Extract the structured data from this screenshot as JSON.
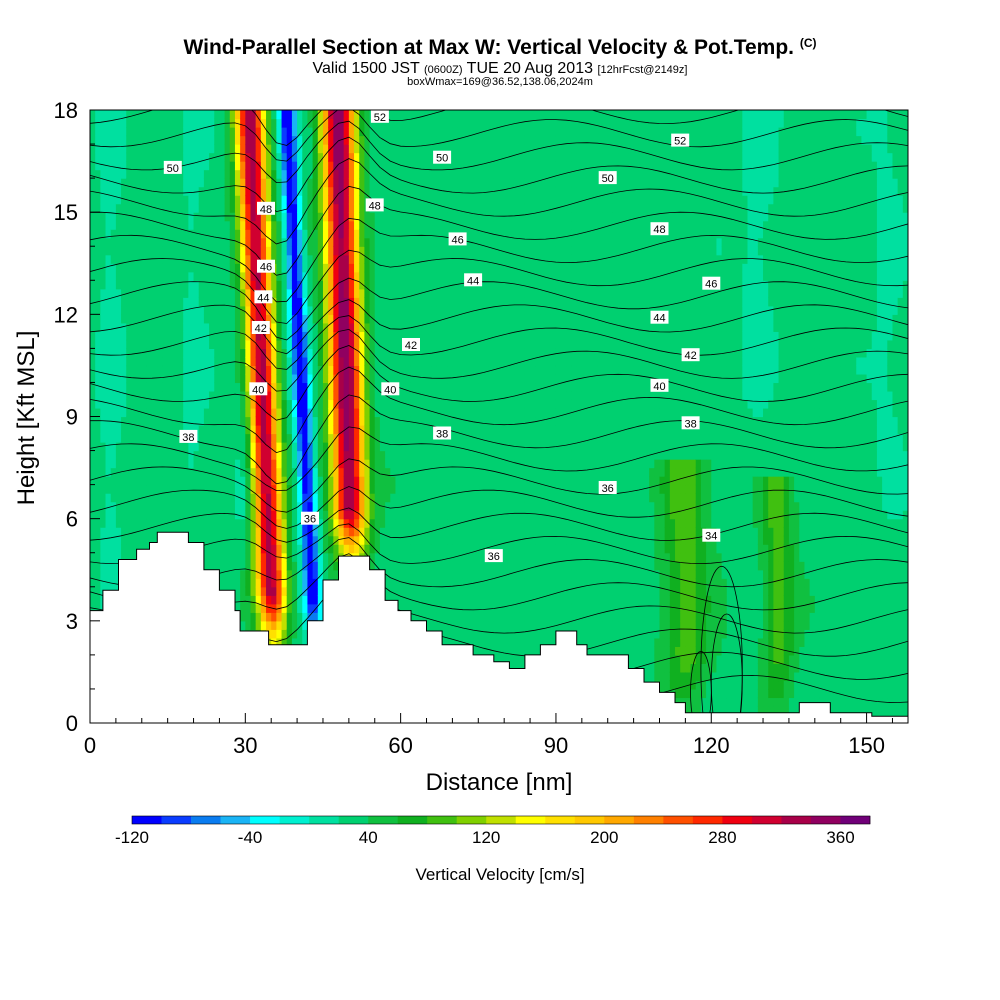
{
  "chart_data": {
    "type": "heatmap",
    "title": {
      "main": "Wind-Parallel Section at Max W: Vertical Velocity & Pot.Temp.",
      "copyright": "(C)",
      "valid_prefix": "Valid 1500 JST",
      "valid_utc": "(0600Z)",
      "valid_suffix": "TUE 20 Aug 2013",
      "forecast": "[12hrFcst@2149z]",
      "subtitle": "boxWmax=169@36.52,138.06,2024m"
    },
    "xlabel": "Distance [nm]",
    "ylabel": "Height [Kft MSL]",
    "xlim": [
      0,
      158
    ],
    "ylim": [
      0,
      18
    ],
    "x_ticks": [
      0,
      30,
      60,
      90,
      120,
      150
    ],
    "y_ticks": [
      0,
      3,
      6,
      9,
      12,
      15,
      18
    ],
    "colorbar": {
      "title": "Vertical Velocity [cm/s]",
      "tick_labels": [
        "-120",
        "-40",
        "40",
        "120",
        "200",
        "280",
        "360"
      ],
      "tick_values": [
        -120,
        -40,
        40,
        120,
        200,
        280,
        360
      ],
      "min": -120,
      "max": 380,
      "step": 20,
      "colors": [
        "#0000ff",
        "#0a3cff",
        "#0a7cf0",
        "#1ab4f5",
        "#00ffff",
        "#00f0d0",
        "#00e0a0",
        "#00d070",
        "#10c040",
        "#10b020",
        "#40c010",
        "#80d000",
        "#c0e000",
        "#ffff00",
        "#ffe000",
        "#ffc800",
        "#ffa800",
        "#ff8000",
        "#ff5000",
        "#ff2800",
        "#f00010",
        "#d00030",
        "#a80048",
        "#900060",
        "#700078"
      ]
    },
    "terrain": [
      [
        0,
        3.3
      ],
      [
        2.5,
        3.3
      ],
      [
        2.5,
        3.9
      ],
      [
        5.5,
        3.9
      ],
      [
        5.5,
        4.8
      ],
      [
        9,
        4.8
      ],
      [
        9,
        5.1
      ],
      [
        11.5,
        5.1
      ],
      [
        11.5,
        5.3
      ],
      [
        13,
        5.3
      ],
      [
        13,
        5.6
      ],
      [
        19,
        5.6
      ],
      [
        19,
        5.3
      ],
      [
        22,
        5.3
      ],
      [
        22,
        4.5
      ],
      [
        25,
        4.5
      ],
      [
        25,
        3.9
      ],
      [
        28,
        3.9
      ],
      [
        28,
        3.3
      ],
      [
        29,
        3.3
      ],
      [
        29,
        2.7
      ],
      [
        34.5,
        2.7
      ],
      [
        34.5,
        2.3
      ],
      [
        42,
        2.3
      ],
      [
        42,
        3.0
      ],
      [
        45,
        3.0
      ],
      [
        45,
        4.2
      ],
      [
        48,
        4.2
      ],
      [
        48,
        4.9
      ],
      [
        54,
        4.9
      ],
      [
        54,
        4.5
      ],
      [
        57,
        4.5
      ],
      [
        57,
        3.6
      ],
      [
        59.5,
        3.6
      ],
      [
        59.5,
        3.3
      ],
      [
        62,
        3.3
      ],
      [
        62,
        3.0
      ],
      [
        65,
        3.0
      ],
      [
        65,
        2.7
      ],
      [
        68,
        2.7
      ],
      [
        68,
        2.3
      ],
      [
        74,
        2.3
      ],
      [
        74,
        2.0
      ],
      [
        78,
        2.0
      ],
      [
        78,
        1.8
      ],
      [
        81,
        1.8
      ],
      [
        81,
        1.6
      ],
      [
        84,
        1.6
      ],
      [
        84,
        2.0
      ],
      [
        87,
        2.0
      ],
      [
        87,
        2.3
      ],
      [
        90,
        2.3
      ],
      [
        90,
        2.7
      ],
      [
        94,
        2.7
      ],
      [
        94,
        2.3
      ],
      [
        96,
        2.3
      ],
      [
        96,
        2.0
      ],
      [
        104,
        2.0
      ],
      [
        104,
        1.6
      ],
      [
        107,
        1.6
      ],
      [
        107,
        1.2
      ],
      [
        110,
        1.2
      ],
      [
        110,
        0.9
      ],
      [
        113,
        0.9
      ],
      [
        113,
        0.6
      ],
      [
        115,
        0.6
      ],
      [
        115,
        0.3
      ],
      [
        131,
        0.3
      ],
      [
        131,
        0.3
      ],
      [
        137,
        0.3
      ],
      [
        137,
        0.6
      ],
      [
        143,
        0.6
      ],
      [
        143,
        0.3
      ],
      [
        151,
        0.3
      ],
      [
        151,
        0.2
      ],
      [
        158,
        0.2
      ]
    ],
    "velocity_features": [
      {
        "x": 35.5,
        "z0": 2.3,
        "z1": 18,
        "slant": -3.0,
        "width": 2.8,
        "amp": 300
      },
      {
        "x": 50.5,
        "z0": 4.8,
        "z1": 18,
        "slant": -2.0,
        "width": 3.2,
        "amp": 320
      },
      {
        "x": 43.5,
        "z0": 2.3,
        "z1": 18,
        "slant": -3.5,
        "width": 1.6,
        "amp": -150
      },
      {
        "x": 30.5,
        "z0": 5,
        "z1": 12,
        "slant": 0,
        "width": 2.2,
        "amp": -30
      },
      {
        "x": 115,
        "z0": 0.5,
        "z1": 7,
        "slant": 0,
        "width": 4.5,
        "amp": 60
      },
      {
        "x": 133,
        "z0": 0.5,
        "z1": 6.5,
        "slant": 0,
        "width": 3.0,
        "amp": 60
      },
      {
        "x": 4,
        "z0": 3.5,
        "z1": 18,
        "slant": 0,
        "width": 2.5,
        "amp": -20
      },
      {
        "x": 20,
        "z0": 5.5,
        "z1": 18,
        "slant": 0,
        "width": 2.5,
        "amp": -15
      },
      {
        "x": 128,
        "z0": 9,
        "z1": 18,
        "slant": 2,
        "width": 3.5,
        "amp": -20
      },
      {
        "x": 154,
        "z0": 6,
        "z1": 18,
        "slant": 0,
        "width": 3.0,
        "amp": -15
      }
    ],
    "theta_contour_labels": [
      {
        "text": "50",
        "x": 16,
        "z": 16.3
      },
      {
        "text": "50",
        "x": 68,
        "z": 16.6
      },
      {
        "text": "50",
        "x": 100,
        "z": 16.0
      },
      {
        "text": "52",
        "x": 56,
        "z": 17.8
      },
      {
        "text": "52",
        "x": 114,
        "z": 17.1
      },
      {
        "text": "48",
        "x": 34,
        "z": 15.1
      },
      {
        "text": "48",
        "x": 55,
        "z": 15.2
      },
      {
        "text": "48",
        "x": 110,
        "z": 14.5
      },
      {
        "text": "46",
        "x": 34,
        "z": 13.4
      },
      {
        "text": "46",
        "x": 71,
        "z": 14.2
      },
      {
        "text": "46",
        "x": 120,
        "z": 12.9
      },
      {
        "text": "44",
        "x": 33.5,
        "z": 12.5
      },
      {
        "text": "44",
        "x": 74,
        "z": 13.0
      },
      {
        "text": "44",
        "x": 110,
        "z": 11.9
      },
      {
        "text": "42",
        "x": 33,
        "z": 11.6
      },
      {
        "text": "42",
        "x": 62,
        "z": 11.1
      },
      {
        "text": "42",
        "x": 116,
        "z": 10.8
      },
      {
        "text": "40",
        "x": 32.5,
        "z": 9.8
      },
      {
        "text": "40",
        "x": 58,
        "z": 9.8
      },
      {
        "text": "40",
        "x": 110,
        "z": 9.9
      },
      {
        "text": "38",
        "x": 19,
        "z": 8.4
      },
      {
        "text": "38",
        "x": 68,
        "z": 8.5
      },
      {
        "text": "38",
        "x": 116,
        "z": 8.8
      },
      {
        "text": "36",
        "x": 42.5,
        "z": 6.0
      },
      {
        "text": "36",
        "x": 78,
        "z": 4.9
      },
      {
        "text": "36",
        "x": 100,
        "z": 6.9
      },
      {
        "text": "34",
        "x": 120,
        "z": 5.5
      }
    ]
  }
}
